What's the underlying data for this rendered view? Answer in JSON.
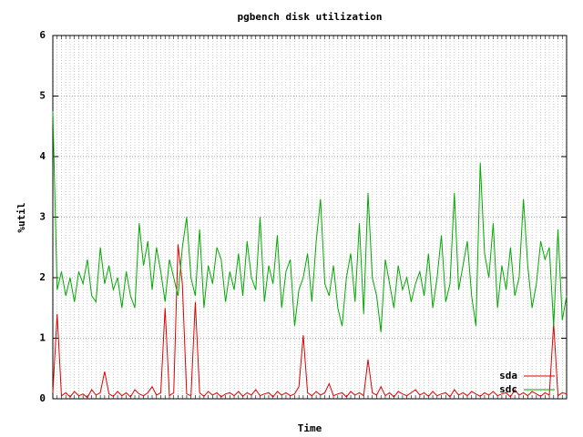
{
  "chart_data": {
    "type": "line",
    "title": "pgbench disk utilization",
    "xlabel": "Time",
    "ylabel": "%util",
    "x": [
      0,
      1,
      2,
      3,
      4,
      5,
      6,
      7,
      8,
      9,
      10,
      11,
      12,
      13,
      14,
      15,
      16,
      17,
      18,
      19,
      20,
      21,
      22,
      23,
      24,
      25,
      26,
      27,
      28,
      29,
      30,
      31,
      32,
      33,
      34,
      35,
      36,
      37,
      38,
      39,
      40,
      41,
      42,
      43,
      44,
      45,
      46,
      47,
      48,
      49,
      50,
      51,
      52,
      53,
      54,
      55,
      56,
      57,
      58,
      59,
      60,
      61,
      62,
      63,
      64,
      65,
      66,
      67,
      68,
      69,
      70,
      71,
      72,
      73,
      74,
      75,
      76,
      77,
      78,
      79,
      80,
      81,
      82,
      83,
      84,
      85,
      86,
      87,
      88,
      89,
      90,
      91,
      92,
      93,
      94,
      95,
      96,
      97,
      98,
      99,
      100,
      101,
      102,
      103,
      104,
      105,
      106,
      107,
      108,
      109,
      110,
      111,
      112,
      113,
      114,
      115,
      116,
      117,
      118,
      119
    ],
    "xlim": [
      0,
      119
    ],
    "ylim": [
      0,
      6
    ],
    "yticks": [
      0,
      1,
      2,
      3,
      4,
      5,
      6
    ],
    "grid": true,
    "legend": "bottom-right",
    "series": [
      {
        "name": "sda",
        "color": "#e00000",
        "values": [
          0.1,
          1.4,
          0.05,
          0.1,
          0.03,
          0.12,
          0.05,
          0.08,
          0.02,
          0.15,
          0.06,
          0.1,
          0.45,
          0.08,
          0.04,
          0.12,
          0.05,
          0.1,
          0.03,
          0.15,
          0.08,
          0.05,
          0.1,
          0.2,
          0.06,
          0.1,
          1.5,
          0.05,
          0.1,
          2.55,
          1.9,
          0.08,
          0.05,
          1.6,
          0.1,
          0.04,
          0.12,
          0.06,
          0.1,
          0.03,
          0.08,
          0.1,
          0.05,
          0.12,
          0.04,
          0.1,
          0.06,
          0.15,
          0.05,
          0.08,
          0.1,
          0.03,
          0.12,
          0.06,
          0.1,
          0.05,
          0.08,
          0.2,
          1.05,
          0.1,
          0.05,
          0.12,
          0.06,
          0.1,
          0.25,
          0.05,
          0.08,
          0.1,
          0.03,
          0.12,
          0.06,
          0.1,
          0.05,
          0.65,
          0.1,
          0.06,
          0.2,
          0.05,
          0.1,
          0.03,
          0.12,
          0.08,
          0.05,
          0.1,
          0.15,
          0.06,
          0.1,
          0.04,
          0.12,
          0.05,
          0.08,
          0.1,
          0.03,
          0.15,
          0.06,
          0.1,
          0.05,
          0.12,
          0.08,
          0.04,
          0.1,
          0.06,
          0.12,
          0.05,
          0.08,
          0.1,
          0.03,
          0.15,
          0.06,
          0.1,
          0.05,
          0.12,
          0.08,
          0.04,
          0.1,
          0.06,
          1.25,
          0.05,
          0.1,
          0.08
        ]
      },
      {
        "name": "sdc",
        "color": "#00aa00",
        "values": [
          4.75,
          1.8,
          2.1,
          1.7,
          2.0,
          1.6,
          2.1,
          1.9,
          2.3,
          1.7,
          1.6,
          2.5,
          1.9,
          2.2,
          1.8,
          2.0,
          1.5,
          2.1,
          1.7,
          1.5,
          2.9,
          2.2,
          2.6,
          1.8,
          2.5,
          2.1,
          1.6,
          2.3,
          2.0,
          1.7,
          2.5,
          3.0,
          2.0,
          1.7,
          2.8,
          1.5,
          2.2,
          1.9,
          2.5,
          2.3,
          1.6,
          2.1,
          1.8,
          2.4,
          1.7,
          2.6,
          2.0,
          1.8,
          3.0,
          1.6,
          2.2,
          1.9,
          2.7,
          1.5,
          2.1,
          2.3,
          1.2,
          1.8,
          2.0,
          2.4,
          1.6,
          2.6,
          3.3,
          1.9,
          1.7,
          2.2,
          1.5,
          1.2,
          2.0,
          2.4,
          1.6,
          2.9,
          1.4,
          3.4,
          2.0,
          1.7,
          1.1,
          2.3,
          1.9,
          1.5,
          2.2,
          1.8,
          2.0,
          1.6,
          1.9,
          2.1,
          1.7,
          2.4,
          1.5,
          2.0,
          2.7,
          1.6,
          1.9,
          3.4,
          1.8,
          2.2,
          2.6,
          1.7,
          1.2,
          3.9,
          2.4,
          2.0,
          2.9,
          1.5,
          2.2,
          1.8,
          2.5,
          1.7,
          2.0,
          3.3,
          2.2,
          1.5,
          1.9,
          2.6,
          2.3,
          2.5,
          1.2,
          2.8,
          1.3,
          1.7
        ]
      }
    ]
  }
}
